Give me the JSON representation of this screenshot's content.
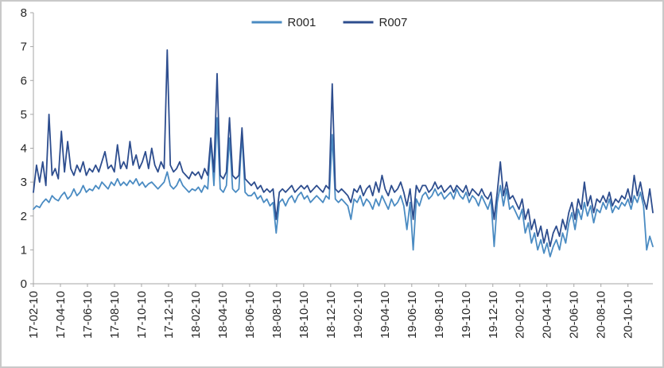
{
  "figure": {
    "background": "#ffffff",
    "border_color": "#c9c9c9"
  },
  "chart_data": {
    "type": "line",
    "title": "",
    "xlabel": "",
    "ylabel": "",
    "grid": false,
    "legend": {
      "position": "top-center",
      "entries": [
        "R001",
        "R007"
      ]
    },
    "ylim": [
      0,
      8
    ],
    "y_ticks": [
      0,
      1,
      2,
      3,
      4,
      5,
      6,
      7,
      8
    ],
    "x_tick_labels": [
      "17-02-10",
      "17-04-10",
      "17-06-10",
      "17-08-10",
      "17-10-10",
      "17-12-10",
      "18-02-10",
      "18-04-10",
      "18-06-10",
      "18-08-10",
      "18-10-10",
      "18-12-10",
      "19-02-10",
      "19-04-10",
      "19-06-10",
      "19-08-10",
      "19-10-10",
      "19-12-10",
      "20-02-10",
      "20-04-10",
      "20-06-10",
      "20-08-10",
      "20-10-10"
    ],
    "last_tick_index": 191,
    "axis_color": "#a6a6a6",
    "series": [
      {
        "name": "R001",
        "color": "#4a8bc2",
        "values": [
          2.2,
          2.3,
          2.25,
          2.4,
          2.5,
          2.4,
          2.6,
          2.5,
          2.45,
          2.6,
          2.7,
          2.5,
          2.6,
          2.8,
          2.6,
          2.7,
          2.9,
          2.7,
          2.8,
          2.75,
          2.9,
          2.8,
          3.0,
          2.9,
          2.8,
          3.0,
          2.9,
          3.1,
          2.9,
          3.0,
          2.9,
          3.05,
          2.95,
          3.1,
          2.9,
          3.0,
          2.85,
          2.95,
          3.0,
          2.9,
          2.8,
          2.9,
          3.0,
          3.3,
          2.9,
          2.8,
          2.9,
          3.1,
          2.9,
          2.8,
          2.7,
          2.8,
          2.75,
          2.85,
          2.7,
          2.9,
          2.8,
          4.2,
          2.9,
          4.9,
          2.8,
          2.7,
          2.9,
          4.3,
          2.8,
          2.7,
          2.8,
          4.4,
          2.7,
          2.6,
          2.6,
          2.7,
          2.5,
          2.6,
          2.4,
          2.5,
          2.3,
          2.4,
          1.5,
          2.4,
          2.5,
          2.3,
          2.5,
          2.6,
          2.4,
          2.6,
          2.7,
          2.5,
          2.6,
          2.4,
          2.5,
          2.6,
          2.5,
          2.4,
          2.6,
          2.5,
          4.4,
          2.5,
          2.4,
          2.5,
          2.4,
          2.3,
          1.9,
          2.5,
          2.4,
          2.6,
          2.3,
          2.5,
          2.4,
          2.2,
          2.5,
          2.3,
          2.6,
          2.4,
          2.2,
          2.5,
          2.3,
          2.4,
          2.6,
          2.3,
          1.6,
          2.4,
          1.0,
          2.5,
          2.3,
          2.6,
          2.7,
          2.5,
          2.6,
          2.8,
          2.6,
          2.7,
          2.5,
          2.6,
          2.7,
          2.5,
          2.8,
          2.6,
          2.5,
          2.7,
          2.4,
          2.6,
          2.5,
          2.3,
          2.6,
          2.4,
          2.2,
          2.5,
          1.1,
          2.4,
          2.9,
          2.3,
          2.8,
          2.2,
          2.3,
          2.1,
          1.9,
          2.2,
          1.5,
          1.8,
          1.2,
          1.5,
          1.0,
          1.3,
          0.9,
          1.2,
          0.8,
          1.1,
          1.3,
          1.0,
          1.5,
          1.2,
          1.8,
          2.1,
          1.6,
          2.2,
          1.9,
          2.4,
          2.0,
          2.3,
          1.8,
          2.2,
          2.1,
          2.4,
          2.2,
          2.5,
          2.1,
          2.3,
          2.2,
          2.4,
          2.3,
          2.5,
          2.2,
          2.6,
          2.4,
          2.7,
          2.3,
          1.0,
          1.4,
          1.1
        ]
      },
      {
        "name": "R007",
        "color": "#2d4d8e",
        "values": [
          2.7,
          3.5,
          3.0,
          3.6,
          2.9,
          5.0,
          3.2,
          3.4,
          3.1,
          4.5,
          3.3,
          4.2,
          3.4,
          3.2,
          3.5,
          3.3,
          3.6,
          3.2,
          3.4,
          3.3,
          3.5,
          3.3,
          3.6,
          3.9,
          3.4,
          3.5,
          3.3,
          4.1,
          3.4,
          3.6,
          3.4,
          4.2,
          3.5,
          3.8,
          3.4,
          3.6,
          3.9,
          3.4,
          4.0,
          3.5,
          3.3,
          3.6,
          3.4,
          6.9,
          3.5,
          3.3,
          3.4,
          3.6,
          3.3,
          3.2,
          3.1,
          3.3,
          3.2,
          3.3,
          3.1,
          3.4,
          3.2,
          4.3,
          3.3,
          6.2,
          3.2,
          3.1,
          3.3,
          4.9,
          3.2,
          3.1,
          3.2,
          4.6,
          3.1,
          3.0,
          2.9,
          3.0,
          2.8,
          2.9,
          2.7,
          2.8,
          2.7,
          2.8,
          1.9,
          2.7,
          2.8,
          2.7,
          2.8,
          2.9,
          2.7,
          2.8,
          2.9,
          2.8,
          2.9,
          2.7,
          2.8,
          2.9,
          2.8,
          2.7,
          2.9,
          2.8,
          5.9,
          2.8,
          2.7,
          2.8,
          2.7,
          2.6,
          2.4,
          2.8,
          2.7,
          2.9,
          2.6,
          2.8,
          2.9,
          2.6,
          3.0,
          2.7,
          3.2,
          2.8,
          2.6,
          2.9,
          2.7,
          2.8,
          3.0,
          2.7,
          2.3,
          2.8,
          1.9,
          2.9,
          2.7,
          2.9,
          2.9,
          2.7,
          2.8,
          3.0,
          2.8,
          2.9,
          2.7,
          2.8,
          2.9,
          2.7,
          2.9,
          2.8,
          2.7,
          2.9,
          2.6,
          2.8,
          2.7,
          2.6,
          2.8,
          2.6,
          2.5,
          2.7,
          1.9,
          2.7,
          3.6,
          2.6,
          3.0,
          2.5,
          2.6,
          2.4,
          2.2,
          2.5,
          1.9,
          2.2,
          1.6,
          1.9,
          1.4,
          1.7,
          1.2,
          1.6,
          1.1,
          1.5,
          1.7,
          1.4,
          1.9,
          1.6,
          2.1,
          2.4,
          1.9,
          2.5,
          2.2,
          3.0,
          2.3,
          2.6,
          2.1,
          2.5,
          2.4,
          2.6,
          2.4,
          2.7,
          2.3,
          2.5,
          2.4,
          2.6,
          2.5,
          2.8,
          2.4,
          3.2,
          2.6,
          3.0,
          2.5,
          2.2,
          2.8,
          2.1
        ]
      }
    ]
  }
}
